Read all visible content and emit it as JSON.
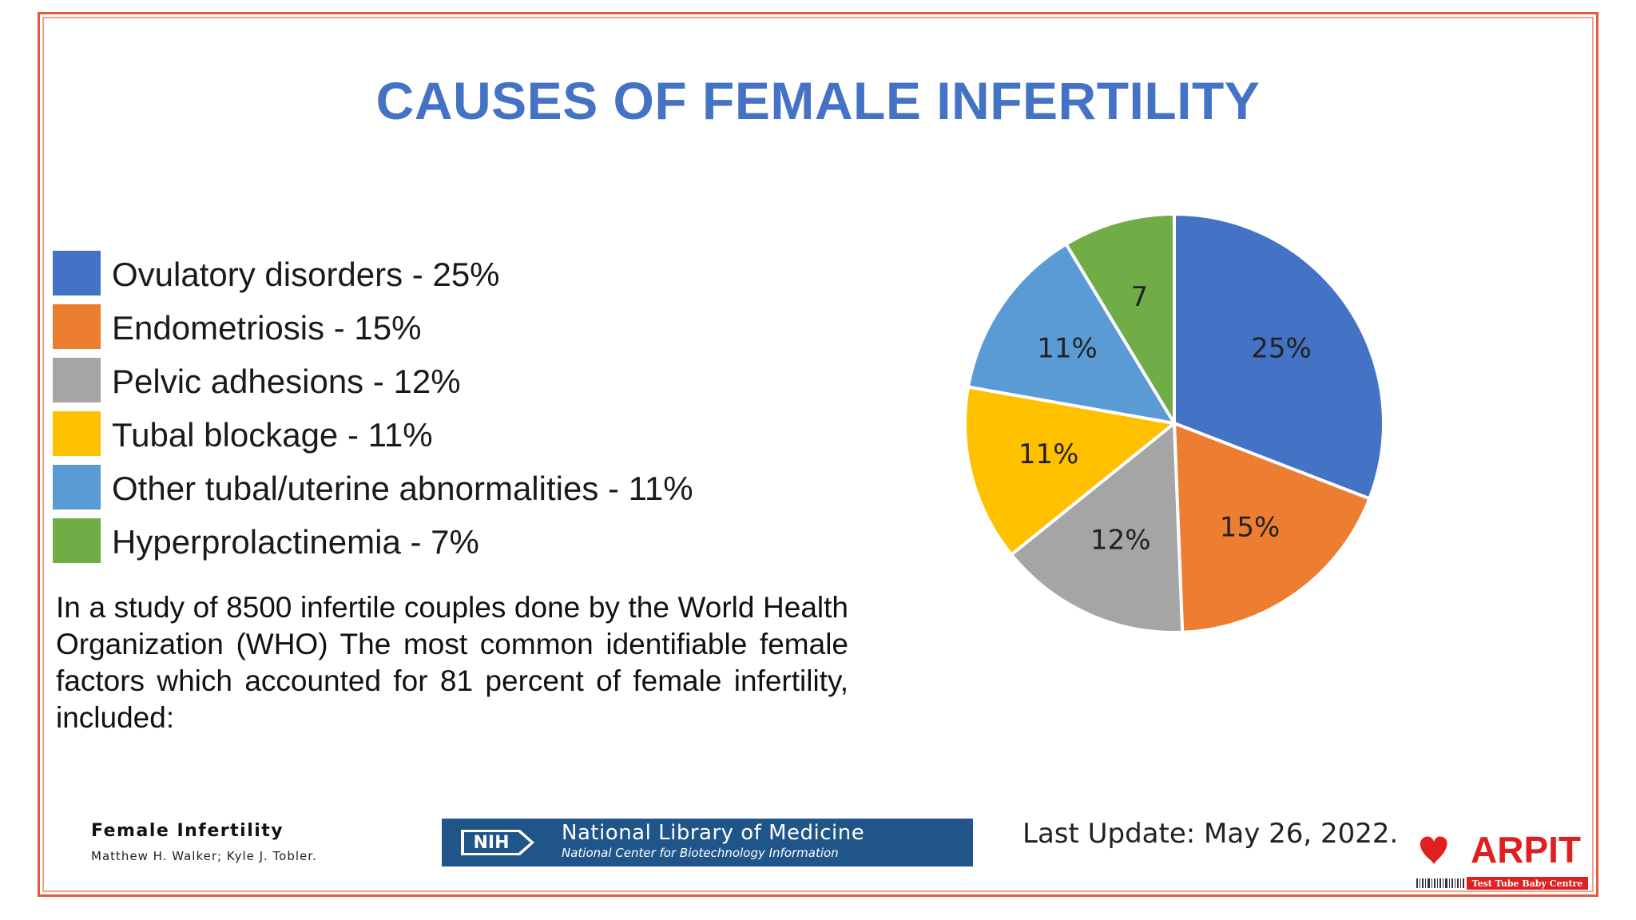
{
  "title": "CAUSES OF FEMALE INFERTILITY",
  "legend": [
    {
      "label": "Ovulatory disorders - 25%",
      "color": "#4472c4"
    },
    {
      "label": "Endometriosis - 15%",
      "color": "#ed7d31"
    },
    {
      "label": "Pelvic adhesions - 12%",
      "color": "#a5a5a5"
    },
    {
      "label": "Tubal blockage - 11%",
      "color": "#ffc000"
    },
    {
      "label": "Other tubal/uterine abnormalities - 11%",
      "color": "#5b9bd5"
    },
    {
      "label": "Hyperprolactinemia - 7%",
      "color": "#70ad47"
    }
  ],
  "paragraph": "In a study of 8500 infertile couples done by the World Health Organization (WHO) The most common identifiable female factors which accounted for 81 percent of female infertility, included:",
  "chart_data": {
    "type": "pie",
    "title": "",
    "categories": [
      "Ovulatory disorders",
      "Endometriosis",
      "Pelvic adhesions",
      "Tubal blockage",
      "Other tubal/uterine abnormalities",
      "Hyperprolactinemia"
    ],
    "values": [
      25,
      15,
      12,
      11,
      11,
      7
    ],
    "data_labels": [
      "25%",
      "15%",
      "12%",
      "11%",
      "11%",
      "7"
    ],
    "colors": [
      "#4472c4",
      "#ed7d31",
      "#a5a5a5",
      "#ffc000",
      "#5b9bd5",
      "#70ad47"
    ],
    "start": "12 o'clock, clockwise",
    "legend_placement": "left"
  },
  "reference": {
    "book_title": "Female Infertility",
    "authors": "Matthew H. Walker; Kyle J. Tobler.",
    "nih_badge": "NIH",
    "nih_title": "National Library of Medicine",
    "nih_subtitle": "National Center for Biotechnology Information",
    "last_update": "Last Update: May 26, 2022."
  },
  "logo": {
    "brand": "ARPIT",
    "tagline": "Test Tube Baby Centre",
    "icon": "heart-icon",
    "colors": {
      "brand": "#e02020"
    }
  },
  "colors": {
    "title": "#4472c4",
    "frame": "#e05a3c",
    "nih_banner": "#20558a"
  }
}
